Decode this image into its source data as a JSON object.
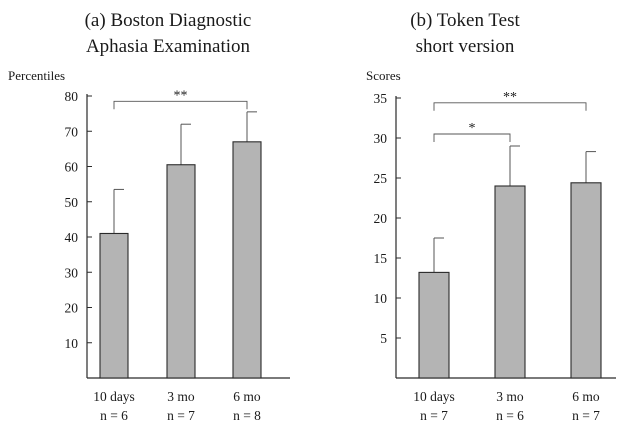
{
  "chart_data": [
    {
      "type": "bar",
      "title_line1": "(a) Boston Diagnostic",
      "title_line2": "Aphasia Examination",
      "ylabel": "Percentiles",
      "xlabel": "",
      "ylim": [
        0,
        80
      ],
      "yticks": [
        10,
        20,
        30,
        40,
        50,
        60,
        70,
        80
      ],
      "categories": [
        "10 days",
        "3 mo",
        "6 mo"
      ],
      "n_labels": [
        "n = 6",
        "n = 7",
        "n = 8"
      ],
      "values": [
        41,
        60.5,
        67
      ],
      "error_upper": [
        53.5,
        72,
        75.5
      ],
      "bar_color": "#b4b4b4",
      "significance": [
        {
          "from": 0,
          "to": 2,
          "label": "**",
          "at": 78.5
        }
      ]
    },
    {
      "type": "bar",
      "title_line1": "(b) Token Test",
      "title_line2": "short version",
      "ylabel": "Scores",
      "xlabel": "",
      "ylim": [
        0,
        35
      ],
      "yticks": [
        5,
        10,
        15,
        20,
        25,
        30,
        35
      ],
      "categories": [
        "10 days",
        "3 mo",
        "6 mo"
      ],
      "n_labels": [
        "n = 7",
        "n = 6",
        "n = 7"
      ],
      "values": [
        13.2,
        24,
        24.4
      ],
      "error_upper": [
        17.5,
        29,
        28.3
      ],
      "bar_color": "#b4b4b4",
      "significance": [
        {
          "from": 0,
          "to": 1,
          "label": "*",
          "at": 30.5
        },
        {
          "from": 0,
          "to": 2,
          "label": "**",
          "at": 34.4
        }
      ]
    }
  ]
}
